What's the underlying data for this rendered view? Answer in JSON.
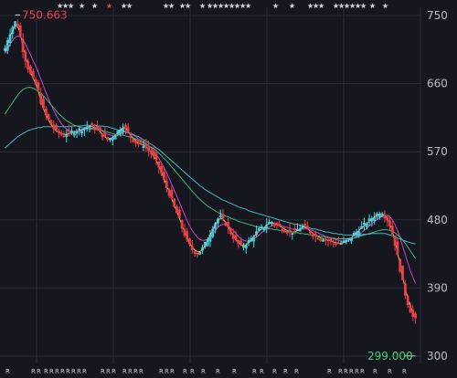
{
  "chart_data": {
    "type": "candlestick",
    "y_ticks": [
      "750",
      "660",
      "570",
      "480",
      "390",
      "300"
    ],
    "ylim": [
      300,
      750
    ],
    "grid": true,
    "annotations": {
      "high": {
        "label": "750.663",
        "value": 750.663
      },
      "low": {
        "label": "299.000",
        "value": 299.0
      }
    },
    "closes": [
      706,
      718,
      727,
      735,
      741,
      736,
      722,
      705,
      692,
      681,
      672,
      665,
      659,
      650,
      636,
      626,
      618,
      612,
      606,
      601,
      597,
      595,
      593,
      592,
      594,
      595,
      596,
      597,
      598,
      599,
      600,
      602,
      603,
      604,
      603,
      602,
      599,
      596,
      592,
      589,
      586,
      588,
      590,
      593,
      597,
      601,
      603,
      600,
      596,
      590,
      586,
      583,
      581,
      580,
      579,
      576,
      572,
      568,
      563,
      557,
      550,
      541,
      532,
      523,
      515,
      506,
      497,
      489,
      480,
      470,
      461,
      452,
      446,
      441,
      438,
      436,
      438,
      442,
      448,
      455,
      462,
      470,
      476,
      481,
      483,
      480,
      475,
      469,
      463,
      457,
      452,
      448,
      446,
      446,
      448,
      451,
      455,
      459,
      463,
      466,
      469,
      471,
      474,
      476,
      477,
      475,
      473,
      471,
      469,
      467,
      465,
      464,
      464,
      465,
      467,
      469,
      471,
      470,
      467,
      464,
      461,
      459,
      457,
      456,
      455,
      454,
      453,
      452,
      451,
      450,
      449,
      449,
      450,
      452,
      454,
      457,
      461,
      464,
      467,
      470,
      473,
      476,
      479,
      482,
      485,
      487,
      489,
      488,
      485,
      481,
      473,
      462,
      448,
      432,
      415,
      398,
      382,
      370,
      360,
      352,
      348
    ],
    "moving_averages": [
      {
        "color": "#f2c230",
        "values": [
          700,
          712,
          722,
          730,
          737,
          736,
          726,
          710,
          696,
          684,
          675,
          667,
          660,
          650,
          638,
          627,
          619,
          612,
          606,
          601,
          598,
          596,
          594,
          593,
          593,
          594,
          595,
          596,
          597,
          598,
          599,
          601,
          602,
          603,
          603,
          602,
          600,
          597,
          593,
          590,
          587,
          587,
          589,
          592,
          595,
          599,
          602,
          601,
          597,
          592,
          588,
          585,
          582,
          580,
          579,
          577,
          573,
          569,
          564,
          558,
          551,
          543,
          534,
          525,
          517,
          508,
          499,
          491,
          482,
          473,
          464,
          456,
          449,
          444,
          440,
          438,
          438,
          441,
          446,
          453,
          460,
          467,
          474,
          479,
          482,
          481,
          477,
          471,
          465,
          459,
          454,
          450,
          447,
          446,
          447,
          450,
          454,
          458,
          461,
          465,
          468,
          470,
          473,
          475,
          476,
          475,
          474,
          472,
          470,
          468,
          466,
          465,
          464,
          464,
          466,
          468,
          470,
          470,
          468,
          465,
          462,
          460,
          458,
          456,
          455,
          454,
          453,
          452,
          451,
          450,
          449,
          449,
          450,
          451,
          453,
          456,
          460,
          463,
          466,
          469,
          472,
          475,
          478,
          481,
          484,
          486,
          488,
          488,
          486,
          482,
          475,
          465,
          452,
          437,
          420,
          404,
          389,
          376,
          366,
          358,
          353
        ]
      },
      {
        "color": "#c642c6",
        "values": [
          700,
          706,
          712,
          717,
          721,
          723,
          722,
          718,
          712,
          705,
          698,
          690,
          683,
          675,
          666,
          657,
          648,
          640,
          632,
          625,
          618,
          612,
          607,
          603,
          600,
          598,
          597,
          597,
          597,
          597,
          598,
          599,
          600,
          601,
          601,
          601,
          600,
          599,
          597,
          595,
          593,
          592,
          591,
          591,
          592,
          594,
          596,
          597,
          596,
          594,
          592,
          590,
          587,
          585,
          583,
          581,
          578,
          575,
          571,
          566,
          561,
          555,
          549,
          542,
          535,
          527,
          519,
          511,
          503,
          495,
          487,
          479,
          472,
          466,
          461,
          457,
          454,
          453,
          453,
          455,
          458,
          462,
          466,
          470,
          473,
          474,
          474,
          472,
          469,
          466,
          462,
          458,
          455,
          453,
          452,
          452,
          453,
          455,
          457,
          460,
          463,
          466,
          468,
          470,
          472,
          473,
          473,
          473,
          472,
          471,
          470,
          469,
          468,
          467,
          467,
          467,
          468,
          468,
          468,
          467,
          466,
          464,
          463,
          461,
          460,
          458,
          457,
          456,
          455,
          454,
          453,
          452,
          452,
          452,
          453,
          454,
          456,
          458,
          460,
          463,
          466,
          469,
          472,
          475,
          478,
          480,
          483,
          485,
          486,
          486,
          484,
          480,
          474,
          466,
          456,
          445,
          434,
          423,
          413,
          404,
          396
        ]
      },
      {
        "color": "#3db878",
        "values": [
          620,
          625,
          630,
          635,
          640,
          645,
          649,
          652,
          654,
          655,
          655,
          654,
          652,
          650,
          647,
          644,
          640,
          636,
          632,
          628,
          624,
          620,
          617,
          614,
          611,
          609,
          607,
          605,
          604,
          603,
          602,
          601,
          601,
          600,
          600,
          600,
          599,
          599,
          598,
          597,
          596,
          595,
          594,
          593,
          593,
          592,
          592,
          591,
          590,
          589,
          588,
          587,
          585,
          584,
          582,
          580,
          578,
          576,
          574,
          571,
          568,
          565,
          561,
          558,
          554,
          550,
          546,
          542,
          538,
          534,
          530,
          526,
          522,
          518,
          514,
          510,
          507,
          504,
          501,
          498,
          496,
          494,
          492,
          490,
          488,
          487,
          485,
          484,
          482,
          481,
          480,
          478,
          477,
          476,
          475,
          474,
          473,
          472,
          471,
          470,
          470,
          469,
          469,
          468,
          468,
          467,
          467,
          466,
          466,
          465,
          465,
          464,
          464,
          463,
          463,
          462,
          462,
          461,
          461,
          460,
          460,
          459,
          459,
          458,
          458,
          457,
          457,
          456,
          456,
          455,
          455,
          455,
          455,
          455,
          455,
          456,
          456,
          457,
          458,
          459,
          460,
          461,
          462,
          463,
          464,
          465,
          466,
          467,
          467,
          467,
          466,
          465,
          463,
          460,
          457,
          453,
          449,
          444,
          439,
          434,
          429
        ]
      },
      {
        "color": "#4ab5c4",
        "values": [
          575,
          578,
          581,
          584,
          587,
          590,
          592,
          594,
          596,
          598,
          599,
          600,
          601,
          602,
          602,
          603,
          603,
          603,
          603,
          603,
          603,
          603,
          603,
          603,
          603,
          603,
          604,
          604,
          604,
          604,
          604,
          605,
          605,
          605,
          605,
          605,
          604,
          604,
          604,
          603,
          603,
          602,
          601,
          600,
          599,
          598,
          597,
          596,
          595,
          594,
          593,
          591,
          590,
          588,
          586,
          584,
          582,
          580,
          578,
          575,
          573,
          570,
          567,
          564,
          561,
          558,
          555,
          552,
          549,
          546,
          543,
          540,
          537,
          534,
          531,
          528,
          525,
          523,
          520,
          518,
          516,
          514,
          512,
          510,
          508,
          506,
          505,
          503,
          502,
          500,
          499,
          497,
          496,
          495,
          494,
          492,
          491,
          490,
          489,
          488,
          487,
          486,
          485,
          484,
          483,
          482,
          481,
          480,
          479,
          478,
          477,
          476,
          475,
          474,
          474,
          473,
          472,
          471,
          470,
          469,
          468,
          468,
          467,
          466,
          465,
          464,
          464,
          463,
          462,
          462,
          461,
          461,
          460,
          460,
          460,
          460,
          460,
          460,
          460,
          460,
          461,
          461,
          461,
          462,
          462,
          462,
          462,
          462,
          462,
          461,
          460,
          459,
          458,
          456,
          455,
          453,
          452,
          451,
          450,
          449,
          448
        ]
      }
    ],
    "colors": {
      "up": "#4fd9e8",
      "down": "#e8414b",
      "grid": "#2a2c36",
      "background": "#16161e"
    }
  }
}
